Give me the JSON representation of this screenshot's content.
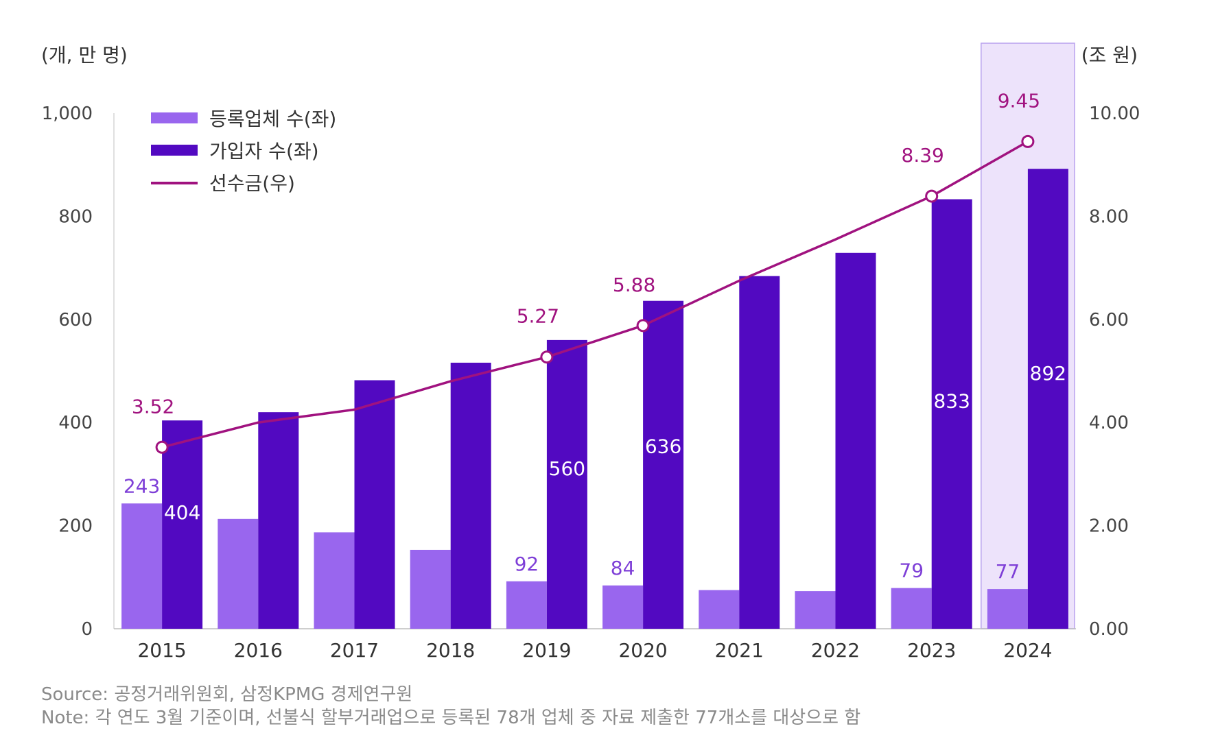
{
  "chart_data": {
    "type": "bar",
    "categories": [
      "2015",
      "2016",
      "2017",
      "2018",
      "2019",
      "2020",
      "2021",
      "2022",
      "2023",
      "2024"
    ],
    "left_axis": {
      "unit_label": "(개, 만 명)",
      "ylim": [
        0,
        1000
      ],
      "ticks": [
        0,
        200,
        400,
        600,
        800,
        1000
      ],
      "tick_labels": [
        "0",
        "200",
        "400",
        "600",
        "800",
        "1,000"
      ]
    },
    "right_axis": {
      "unit_label": "(조 원)",
      "ylim": [
        0,
        10
      ],
      "ticks": [
        0,
        2,
        4,
        6,
        8,
        10
      ],
      "tick_labels": [
        "0.00",
        "2.00",
        "4.00",
        "6.00",
        "8.00",
        "10.00"
      ]
    },
    "series": [
      {
        "name": "등록업체 수(좌)",
        "type": "bar",
        "axis": "left",
        "color": "#9966ee",
        "values": [
          243,
          213,
          187,
          153,
          92,
          84,
          75,
          73,
          79,
          77
        ],
        "labels": [
          "243",
          "",
          "",
          "",
          "92",
          "84",
          "",
          "",
          "79",
          "77"
        ]
      },
      {
        "name": "가입자 수(좌)",
        "type": "bar",
        "axis": "left",
        "color": "#5209c1",
        "values": [
          404,
          420,
          482,
          516,
          560,
          636,
          684,
          729,
          833,
          892
        ],
        "labels": [
          "404",
          "",
          "",
          "",
          "560",
          "636",
          "",
          "",
          "833",
          "892"
        ]
      },
      {
        "name": "선수금(우)",
        "type": "line",
        "axis": "right",
        "color": "#a0127f",
        "values": [
          3.52,
          4.0,
          4.25,
          4.8,
          5.27,
          5.88,
          6.75,
          7.55,
          8.39,
          9.45
        ],
        "labels": [
          "3.52",
          "",
          "",
          "",
          "5.27",
          "5.88",
          "",
          "",
          "8.39",
          "9.45"
        ],
        "markers": [
          true,
          false,
          false,
          false,
          true,
          true,
          false,
          false,
          true,
          true
        ]
      }
    ],
    "highlight_category": "2024",
    "highlight_color": "#ede3fb",
    "legend_position": "top-left",
    "grid": false
  },
  "footnotes": {
    "source": "Source: 공정거래위원회, 삼정KPMG 경제연구원",
    "note": "Note: 각 연도 3월 기준이며, 선불식 할부거래업으로 등록된 78개 업체 중 자료 제출한 77개소를 대상으로 함"
  }
}
